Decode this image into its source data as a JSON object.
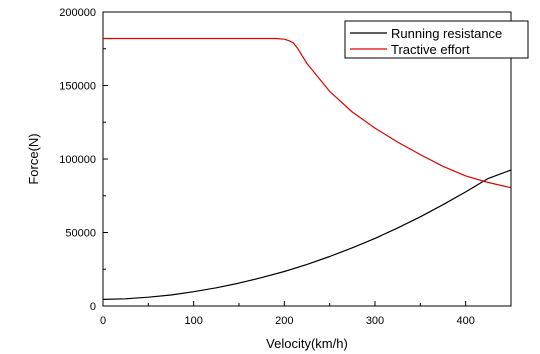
{
  "chart_data": {
    "type": "line",
    "xlabel": "Velocity(km/h)",
    "ylabel": "Force(N)",
    "xlim": [
      0,
      450
    ],
    "ylim": [
      0,
      200000
    ],
    "xticks": [
      0,
      100,
      200,
      300,
      400
    ],
    "yticks": [
      0,
      50000,
      100000,
      150000,
      200000
    ],
    "grid": false,
    "legend_position": "top-right",
    "series": [
      {
        "name": "Running resistance",
        "color": "#000000",
        "x": [
          0,
          25,
          50,
          75,
          100,
          125,
          150,
          175,
          200,
          225,
          250,
          275,
          300,
          325,
          350,
          375,
          400,
          425,
          450
        ],
        "y": [
          4500,
          4900,
          6000,
          7500,
          9700,
          12400,
          15600,
          19300,
          23500,
          28300,
          33700,
          39600,
          46000,
          53100,
          60700,
          68900,
          77600,
          86800,
          92500
        ]
      },
      {
        "name": "Tractive effort",
        "color": "#e00000",
        "x": [
          0,
          50,
          100,
          150,
          190,
          200,
          205,
          210,
          215,
          225,
          250,
          275,
          300,
          325,
          350,
          375,
          400,
          425,
          450
        ],
        "y": [
          182000,
          182000,
          182000,
          182000,
          182000,
          181500,
          180500,
          179000,
          175000,
          165000,
          146000,
          132000,
          121000,
          111500,
          103000,
          95000,
          88500,
          84000,
          80500
        ]
      }
    ]
  }
}
